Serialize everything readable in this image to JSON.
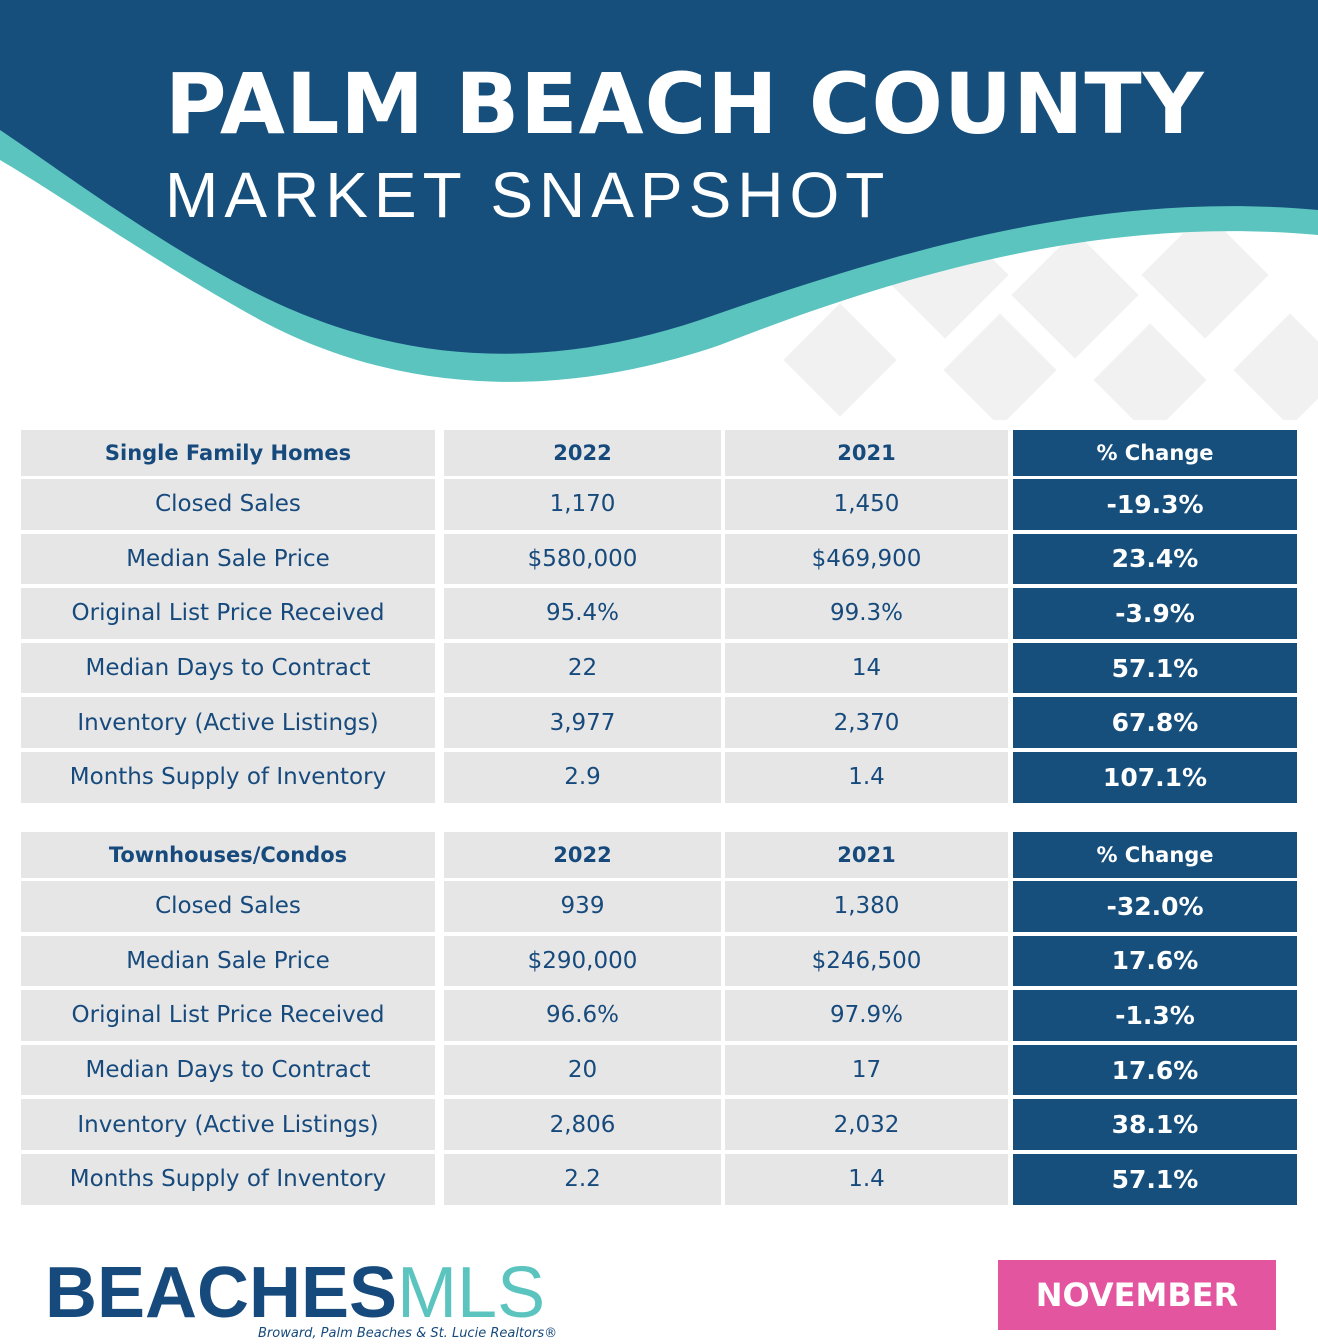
{
  "header": {
    "title": "PALM BEACH COUNTY",
    "subtitle": "MARKET SNAPSHOT"
  },
  "tables": [
    {
      "header": [
        "Single Family Homes",
        "2022",
        "2021",
        "% Change"
      ],
      "rows": [
        [
          "Closed Sales",
          "1,170",
          "1,450",
          "-19.3%"
        ],
        [
          "Median Sale Price",
          "$580,000",
          "$469,900",
          "23.4%"
        ],
        [
          "Original List Price Received",
          "95.4%",
          "99.3%",
          "-3.9%"
        ],
        [
          "Median Days to Contract",
          "22",
          "14",
          "57.1%"
        ],
        [
          "Inventory (Active Listings)",
          "3,977",
          "2,370",
          "67.8%"
        ],
        [
          "Months Supply of Inventory",
          "2.9",
          "1.4",
          "107.1%"
        ]
      ]
    },
    {
      "header": [
        "Townhouses/Condos",
        "2022",
        "2021",
        "% Change"
      ],
      "rows": [
        [
          "Closed Sales",
          "939",
          "1,380",
          "-32.0%"
        ],
        [
          "Median Sale Price",
          "$290,000",
          "$246,500",
          "17.6%"
        ],
        [
          "Original List Price Received",
          "96.6%",
          "97.9%",
          "-1.3%"
        ],
        [
          "Median Days to Contract",
          "20",
          "17",
          "17.6%"
        ],
        [
          "Inventory (Active Listings)",
          "2,806",
          "2,032",
          "38.1%"
        ],
        [
          "Months Supply of Inventory",
          "2.2",
          "1.4",
          "57.1%"
        ]
      ]
    }
  ],
  "footer": {
    "brand": "BEACHES",
    "brand_suffix": "MLS",
    "tagline": "Broward, Palm Beaches & St. Lucie Realtors®",
    "month": "NOVEMBER"
  }
}
